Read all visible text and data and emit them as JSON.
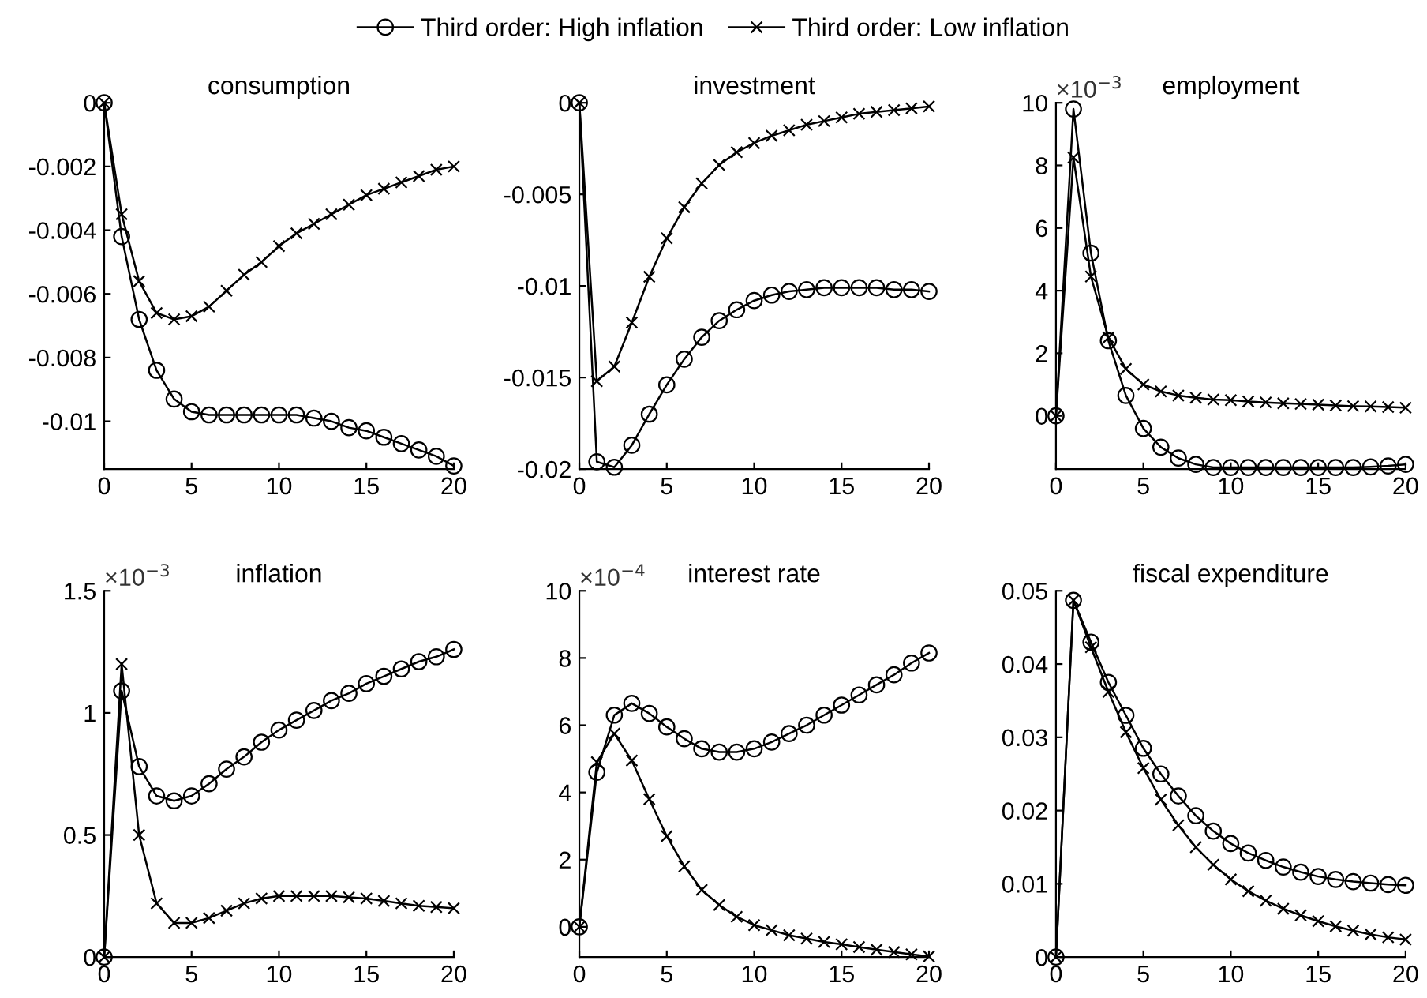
{
  "chart_data": [
    {
      "type": "line",
      "title": "consumption",
      "legend": "top",
      "line_style": "solid",
      "grid": false,
      "xlim": [
        0,
        20
      ],
      "xticks": [
        0,
        5,
        10,
        15,
        20
      ],
      "ylim": [
        -0.0115,
        0
      ],
      "yticks": [
        -0.01,
        -0.008,
        -0.006,
        -0.004,
        -0.002,
        0
      ],
      "x": [
        0,
        1,
        2,
        3,
        4,
        5,
        6,
        7,
        8,
        9,
        10,
        11,
        12,
        13,
        14,
        15,
        16,
        17,
        18,
        19,
        20
      ],
      "series": [
        {
          "name": "Third order: High inflation",
          "color": "#000000",
          "marker": "circle",
          "values": [
            0,
            -0.0042,
            -0.0068,
            -0.0084,
            -0.0093,
            -0.0097,
            -0.0098,
            -0.0098,
            -0.0098,
            -0.0098,
            -0.0098,
            -0.0098,
            -0.0099,
            -0.01,
            -0.0102,
            -0.0103,
            -0.0105,
            -0.0107,
            -0.0109,
            -0.0111,
            -0.0114
          ]
        },
        {
          "name": "Third order: Low inflation",
          "color": "#000000",
          "marker": "cross",
          "values": [
            0,
            -0.0035,
            -0.0056,
            -0.0066,
            -0.0068,
            -0.0067,
            -0.0064,
            -0.0059,
            -0.0054,
            -0.005,
            -0.0045,
            -0.0041,
            -0.0038,
            -0.0035,
            -0.0032,
            -0.0029,
            -0.0027,
            -0.0025,
            -0.0023,
            -0.0021,
            -0.002
          ]
        }
      ]
    },
    {
      "type": "line",
      "title": "investment",
      "line_style": "solid",
      "grid": false,
      "xlim": [
        0,
        20
      ],
      "xticks": [
        0,
        5,
        10,
        15,
        20
      ],
      "ylim": [
        -0.02,
        0
      ],
      "yticks": [
        -0.02,
        -0.015,
        -0.01,
        -0.005,
        0
      ],
      "x": [
        0,
        1,
        2,
        3,
        4,
        5,
        6,
        7,
        8,
        9,
        10,
        11,
        12,
        13,
        14,
        15,
        16,
        17,
        18,
        19,
        20
      ],
      "series": [
        {
          "color": "#000000",
          "marker": "circle",
          "values": [
            0,
            -0.0196,
            -0.0199,
            -0.0187,
            -0.017,
            -0.0154,
            -0.014,
            -0.0128,
            -0.0119,
            -0.0113,
            -0.0108,
            -0.0105,
            -0.0103,
            -0.0102,
            -0.0101,
            -0.0101,
            -0.0101,
            -0.0101,
            -0.0102,
            -0.0102,
            -0.0103
          ]
        },
        {
          "color": "#000000",
          "marker": "cross",
          "values": [
            0,
            -0.0152,
            -0.0144,
            -0.012,
            -0.0095,
            -0.0074,
            -0.0057,
            -0.0044,
            -0.0034,
            -0.0027,
            -0.0022,
            -0.0018,
            -0.0015,
            -0.0012,
            -0.001,
            -0.0008,
            -0.0006,
            -0.0005,
            -0.0004,
            -0.0003,
            -0.0002
          ]
        }
      ]
    },
    {
      "type": "line",
      "title": "employment",
      "annotations": [
        "×10$^{−3}$"
      ],
      "line_style": "solid",
      "grid": false,
      "xlim": [
        0,
        20
      ],
      "xticks": [
        0,
        5,
        10,
        15,
        20
      ],
      "ylim": [
        -1.7,
        10
      ],
      "yticks": [
        0,
        2,
        4,
        6,
        8,
        10
      ],
      "x": [
        0,
        1,
        2,
        3,
        4,
        5,
        6,
        7,
        8,
        9,
        10,
        11,
        12,
        13,
        14,
        15,
        16,
        17,
        18,
        19,
        20
      ],
      "series": [
        {
          "color": "#000000",
          "marker": "circle",
          "values": [
            0,
            9.8,
            5.2,
            2.4,
            0.65,
            -0.4,
            -1.0,
            -1.35,
            -1.55,
            -1.65,
            -1.65,
            -1.65,
            -1.65,
            -1.65,
            -1.65,
            -1.65,
            -1.65,
            -1.65,
            -1.63,
            -1.6,
            -1.55
          ]
        },
        {
          "color": "#000000",
          "marker": "cross",
          "values": [
            0,
            8.25,
            4.45,
            2.5,
            1.5,
            1.0,
            0.78,
            0.65,
            0.58,
            0.52,
            0.5,
            0.46,
            0.43,
            0.4,
            0.38,
            0.36,
            0.33,
            0.31,
            0.3,
            0.28,
            0.26
          ]
        }
      ]
    },
    {
      "type": "line",
      "title": "inflation",
      "annotations": [
        "×10$^{−3}$"
      ],
      "line_style": "solid",
      "grid": false,
      "xlim": [
        0,
        20
      ],
      "xticks": [
        0,
        5,
        10,
        15,
        20
      ],
      "ylim": [
        0,
        1.5
      ],
      "yticks": [
        0,
        0.5,
        1,
        1.5
      ],
      "x": [
        0,
        1,
        2,
        3,
        4,
        5,
        6,
        7,
        8,
        9,
        10,
        11,
        12,
        13,
        14,
        15,
        16,
        17,
        18,
        19,
        20
      ],
      "series": [
        {
          "color": "#000000",
          "marker": "circle",
          "values": [
            0,
            1.09,
            0.78,
            0.66,
            0.64,
            0.66,
            0.71,
            0.77,
            0.82,
            0.88,
            0.93,
            0.97,
            1.01,
            1.05,
            1.08,
            1.12,
            1.15,
            1.18,
            1.21,
            1.23,
            1.26
          ]
        },
        {
          "color": "#000000",
          "marker": "cross",
          "values": [
            0,
            1.2,
            0.5,
            0.22,
            0.14,
            0.14,
            0.16,
            0.19,
            0.22,
            0.24,
            0.25,
            0.25,
            0.25,
            0.25,
            0.245,
            0.24,
            0.23,
            0.22,
            0.21,
            0.205,
            0.2
          ]
        }
      ]
    },
    {
      "type": "line",
      "title": "interest rate",
      "annotations": [
        "×10$^{−4}$"
      ],
      "line_style": "solid",
      "grid": false,
      "xlim": [
        0,
        20
      ],
      "xticks": [
        0,
        5,
        10,
        15,
        20
      ],
      "ylim": [
        -0.9,
        10
      ],
      "yticks": [
        0,
        2,
        4,
        6,
        8,
        10
      ],
      "x": [
        0,
        1,
        2,
        3,
        4,
        5,
        6,
        7,
        8,
        9,
        10,
        11,
        12,
        13,
        14,
        15,
        16,
        17,
        18,
        19,
        20
      ],
      "series": [
        {
          "color": "#000000",
          "marker": "circle",
          "values": [
            0,
            4.6,
            6.3,
            6.65,
            6.35,
            5.95,
            5.6,
            5.3,
            5.2,
            5.2,
            5.3,
            5.5,
            5.75,
            6.0,
            6.3,
            6.6,
            6.9,
            7.2,
            7.5,
            7.85,
            8.15
          ]
        },
        {
          "color": "#000000",
          "marker": "cross",
          "values": [
            0,
            4.9,
            5.75,
            4.95,
            3.8,
            2.7,
            1.8,
            1.1,
            0.65,
            0.3,
            0.05,
            -0.1,
            -0.25,
            -0.35,
            -0.45,
            -0.52,
            -0.6,
            -0.68,
            -0.75,
            -0.82,
            -0.88
          ]
        }
      ]
    },
    {
      "type": "line",
      "title": "fiscal expenditure",
      "line_style": "solid",
      "grid": false,
      "xlim": [
        0,
        20
      ],
      "xticks": [
        0,
        5,
        10,
        15,
        20
      ],
      "ylim": [
        0,
        0.05
      ],
      "yticks": [
        0,
        0.01,
        0.02,
        0.03,
        0.04,
        0.05
      ],
      "x": [
        0,
        1,
        2,
        3,
        4,
        5,
        6,
        7,
        8,
        9,
        10,
        11,
        12,
        13,
        14,
        15,
        16,
        17,
        18,
        19,
        20
      ],
      "series": [
        {
          "color": "#000000",
          "marker": "circle",
          "values": [
            0,
            0.0487,
            0.043,
            0.0375,
            0.033,
            0.0285,
            0.025,
            0.022,
            0.0193,
            0.0172,
            0.0155,
            0.0142,
            0.0132,
            0.0123,
            0.0116,
            0.011,
            0.0106,
            0.0103,
            0.0101,
            0.0099,
            0.0098
          ]
        },
        {
          "color": "#000000",
          "marker": "cross",
          "values": [
            0,
            0.0487,
            0.0423,
            0.0362,
            0.0307,
            0.0258,
            0.0215,
            0.018,
            0.015,
            0.0126,
            0.0106,
            0.009,
            0.0077,
            0.0066,
            0.0057,
            0.0049,
            0.0042,
            0.0036,
            0.0031,
            0.0027,
            0.0024
          ]
        }
      ]
    }
  ]
}
